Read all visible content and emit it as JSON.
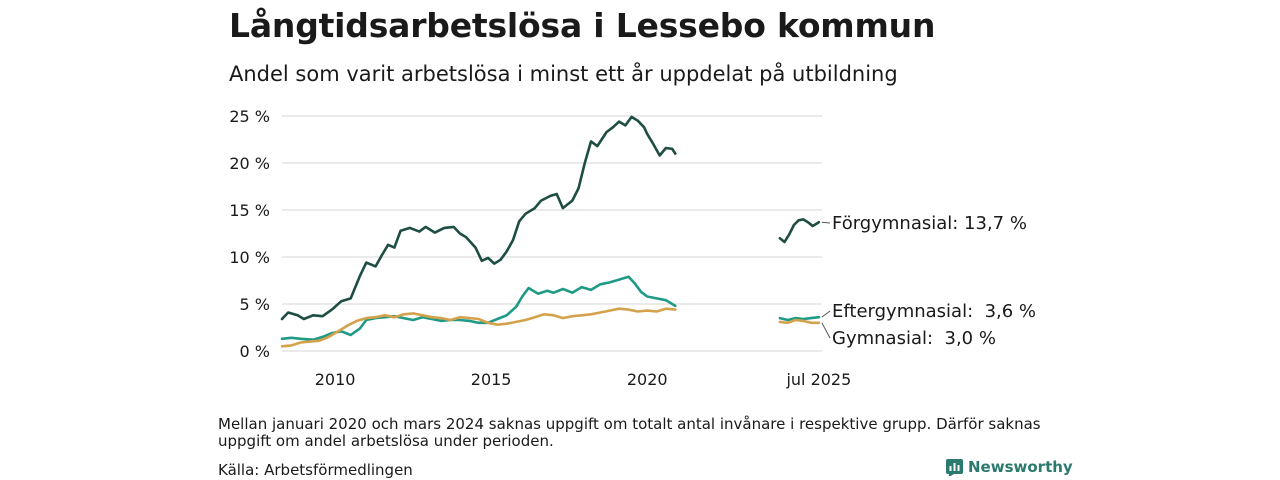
{
  "title": "Långtidsarbetslösa i Lessebo kommun",
  "subtitle": "Andel som varit arbetslösa i minst ett år uppdelat på utbildning",
  "note": "Mellan januari 2020 och mars 2024 saknas uppgift om totalt antal invånare i respektive grupp. Därför saknas uppgift om andel arbetslösa under perioden.",
  "source": "Källa: Arbetsförmedlingen",
  "brand": "Newsworthy",
  "chart_data": {
    "type": "line",
    "title": "Långtidsarbetslösa i Lessebo kommun",
    "subtitle": "Andel som varit arbetslösa i minst ett år uppdelat på utbildning",
    "ylim": [
      0,
      25
    ],
    "xlim": [
      2008.3,
      2025.6
    ],
    "grid": "horizontal",
    "y_ticks": [
      {
        "value": 0,
        "label": "0 %"
      },
      {
        "value": 5,
        "label": "5 %"
      },
      {
        "value": 10,
        "label": "10 %"
      },
      {
        "value": 15,
        "label": "15 %"
      },
      {
        "value": 20,
        "label": "20 %"
      },
      {
        "value": 25,
        "label": "25 %"
      }
    ],
    "x_ticks": [
      {
        "value": 2010,
        "label": "2010"
      },
      {
        "value": 2015,
        "label": "2015"
      },
      {
        "value": 2020,
        "label": "2020"
      },
      {
        "value": 2025.5,
        "label": "jul 2025"
      }
    ],
    "series": [
      {
        "name": "Förgymnasial",
        "color": "#1e4d44",
        "end_label": "Förgymnasial: 13,7 %",
        "segments": [
          [
            [
              2008.3,
              3.4
            ],
            [
              2008.5,
              4.1
            ],
            [
              2008.8,
              3.8
            ],
            [
              2009.0,
              3.4
            ],
            [
              2009.3,
              3.8
            ],
            [
              2009.6,
              3.7
            ],
            [
              2009.9,
              4.4
            ],
            [
              2010.2,
              5.3
            ],
            [
              2010.5,
              5.6
            ],
            [
              2010.8,
              8.0
            ],
            [
              2011.0,
              9.4
            ],
            [
              2011.3,
              9.0
            ],
            [
              2011.5,
              10.2
            ],
            [
              2011.7,
              11.3
            ],
            [
              2011.9,
              11.0
            ],
            [
              2012.1,
              12.8
            ],
            [
              2012.4,
              13.1
            ],
            [
              2012.7,
              12.7
            ],
            [
              2012.9,
              13.2
            ],
            [
              2013.2,
              12.6
            ],
            [
              2013.5,
              13.1
            ],
            [
              2013.8,
              13.2
            ],
            [
              2014.0,
              12.5
            ],
            [
              2014.2,
              12.1
            ],
            [
              2014.5,
              11.0
            ],
            [
              2014.7,
              9.6
            ],
            [
              2014.9,
              9.9
            ],
            [
              2015.1,
              9.3
            ],
            [
              2015.3,
              9.7
            ],
            [
              2015.5,
              10.6
            ],
            [
              2015.7,
              11.8
            ],
            [
              2015.9,
              13.8
            ],
            [
              2016.1,
              14.6
            ],
            [
              2016.4,
              15.2
            ],
            [
              2016.6,
              16.0
            ],
            [
              2016.9,
              16.5
            ],
            [
              2017.1,
              16.7
            ],
            [
              2017.3,
              15.2
            ],
            [
              2017.6,
              16.0
            ],
            [
              2017.8,
              17.3
            ],
            [
              2018.0,
              20.0
            ],
            [
              2018.2,
              22.3
            ],
            [
              2018.4,
              21.8
            ],
            [
              2018.7,
              23.3
            ],
            [
              2018.9,
              23.8
            ],
            [
              2019.1,
              24.4
            ],
            [
              2019.3,
              24.0
            ],
            [
              2019.5,
              24.9
            ],
            [
              2019.7,
              24.5
            ],
            [
              2019.9,
              23.8
            ],
            [
              2020.0,
              23.1
            ],
            [
              2020.2,
              22.0
            ],
            [
              2020.4,
              20.8
            ],
            [
              2020.6,
              21.6
            ],
            [
              2020.8,
              21.5
            ],
            [
              2020.9,
              21.0
            ]
          ],
          [
            [
              2024.25,
              12.0
            ],
            [
              2024.4,
              11.6
            ],
            [
              2024.55,
              12.4
            ],
            [
              2024.7,
              13.4
            ],
            [
              2024.85,
              13.9
            ],
            [
              2025.0,
              14.0
            ],
            [
              2025.15,
              13.7
            ],
            [
              2025.3,
              13.3
            ],
            [
              2025.45,
              13.6
            ],
            [
              2025.5,
              13.7
            ]
          ]
        ]
      },
      {
        "name": "Eftergymnasial",
        "color": "#1f9a86",
        "end_label": "Eftergymnasial:  3,6 %",
        "segments": [
          [
            [
              2008.3,
              1.3
            ],
            [
              2008.6,
              1.4
            ],
            [
              2008.9,
              1.3
            ],
            [
              2009.3,
              1.2
            ],
            [
              2009.6,
              1.5
            ],
            [
              2009.9,
              1.9
            ],
            [
              2010.2,
              2.1
            ],
            [
              2010.5,
              1.7
            ],
            [
              2010.8,
              2.4
            ],
            [
              2011.0,
              3.3
            ],
            [
              2011.3,
              3.5
            ],
            [
              2011.6,
              3.6
            ],
            [
              2011.9,
              3.7
            ],
            [
              2012.2,
              3.5
            ],
            [
              2012.5,
              3.3
            ],
            [
              2012.8,
              3.6
            ],
            [
              2013.1,
              3.4
            ],
            [
              2013.4,
              3.2
            ],
            [
              2013.7,
              3.3
            ],
            [
              2014.0,
              3.3
            ],
            [
              2014.3,
              3.2
            ],
            [
              2014.6,
              3.0
            ],
            [
              2014.9,
              3.0
            ],
            [
              2015.2,
              3.4
            ],
            [
              2015.5,
              3.8
            ],
            [
              2015.8,
              4.7
            ],
            [
              2016.0,
              5.8
            ],
            [
              2016.2,
              6.7
            ],
            [
              2016.5,
              6.1
            ],
            [
              2016.8,
              6.4
            ],
            [
              2017.0,
              6.2
            ],
            [
              2017.3,
              6.6
            ],
            [
              2017.6,
              6.2
            ],
            [
              2017.9,
              6.8
            ],
            [
              2018.2,
              6.5
            ],
            [
              2018.5,
              7.1
            ],
            [
              2018.8,
              7.3
            ],
            [
              2019.1,
              7.6
            ],
            [
              2019.4,
              7.9
            ],
            [
              2019.6,
              7.2
            ],
            [
              2019.8,
              6.3
            ],
            [
              2020.0,
              5.8
            ],
            [
              2020.3,
              5.6
            ],
            [
              2020.6,
              5.4
            ],
            [
              2020.9,
              4.8
            ]
          ],
          [
            [
              2024.25,
              3.5
            ],
            [
              2024.5,
              3.3
            ],
            [
              2024.75,
              3.5
            ],
            [
              2025.0,
              3.4
            ],
            [
              2025.25,
              3.5
            ],
            [
              2025.5,
              3.6
            ]
          ]
        ]
      },
      {
        "name": "Gymnasial",
        "color": "#d4a24c",
        "end_label": "Gymnasial:  3,0 %",
        "segments": [
          [
            [
              2008.3,
              0.5
            ],
            [
              2008.6,
              0.6
            ],
            [
              2008.9,
              0.9
            ],
            [
              2009.2,
              1.0
            ],
            [
              2009.5,
              1.1
            ],
            [
              2009.8,
              1.5
            ],
            [
              2010.1,
              2.1
            ],
            [
              2010.4,
              2.7
            ],
            [
              2010.7,
              3.2
            ],
            [
              2011.0,
              3.5
            ],
            [
              2011.3,
              3.6
            ],
            [
              2011.6,
              3.8
            ],
            [
              2011.9,
              3.6
            ],
            [
              2012.2,
              3.9
            ],
            [
              2012.5,
              4.0
            ],
            [
              2012.8,
              3.8
            ],
            [
              2013.1,
              3.6
            ],
            [
              2013.4,
              3.5
            ],
            [
              2013.7,
              3.3
            ],
            [
              2014.0,
              3.6
            ],
            [
              2014.3,
              3.5
            ],
            [
              2014.6,
              3.4
            ],
            [
              2014.9,
              3.0
            ],
            [
              2015.2,
              2.8
            ],
            [
              2015.5,
              2.9
            ],
            [
              2015.8,
              3.1
            ],
            [
              2016.1,
              3.3
            ],
            [
              2016.4,
              3.6
            ],
            [
              2016.7,
              3.9
            ],
            [
              2017.0,
              3.8
            ],
            [
              2017.3,
              3.5
            ],
            [
              2017.6,
              3.7
            ],
            [
              2017.9,
              3.8
            ],
            [
              2018.2,
              3.9
            ],
            [
              2018.5,
              4.1
            ],
            [
              2018.8,
              4.3
            ],
            [
              2019.1,
              4.5
            ],
            [
              2019.4,
              4.4
            ],
            [
              2019.7,
              4.2
            ],
            [
              2020.0,
              4.3
            ],
            [
              2020.3,
              4.2
            ],
            [
              2020.6,
              4.5
            ],
            [
              2020.9,
              4.4
            ]
          ],
          [
            [
              2024.25,
              3.1
            ],
            [
              2024.5,
              3.0
            ],
            [
              2024.75,
              3.3
            ],
            [
              2025.0,
              3.2
            ],
            [
              2025.25,
              3.0
            ],
            [
              2025.5,
              3.0
            ]
          ]
        ]
      }
    ]
  }
}
